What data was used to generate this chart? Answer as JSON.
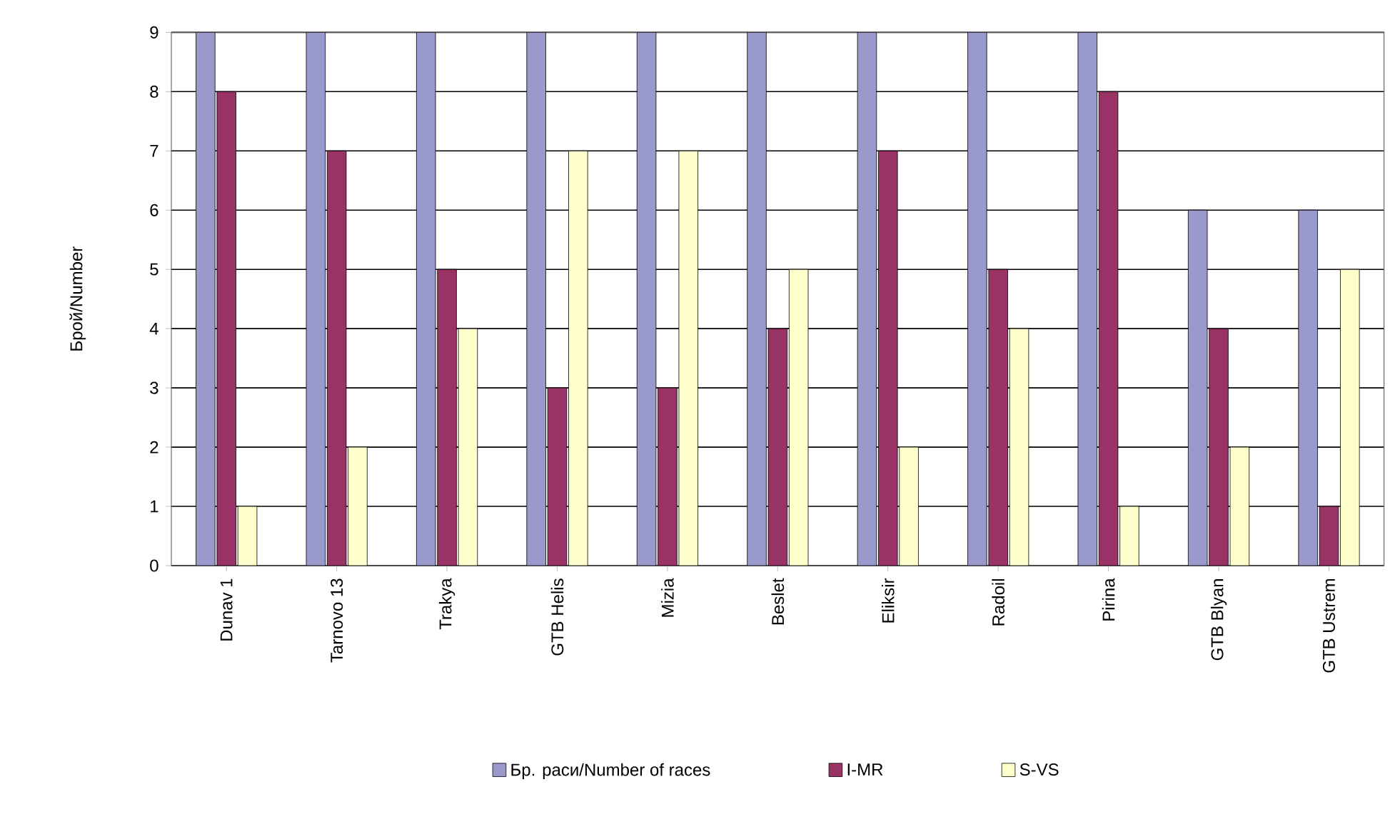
{
  "chart_data": {
    "type": "bar",
    "ylabel": "Брой/Number",
    "categories": [
      "Dunav 1",
      "Tarnovo 13",
      "Trakya",
      "GTB Helis",
      "Mizia",
      "Beslet",
      "Eliksir",
      "Radoil",
      "Pirina",
      "GTB Blyan",
      "GTB Ustrem"
    ],
    "series": [
      {
        "name": "Бр. раси/Number of races",
        "color": "#9999cc",
        "values": [
          9,
          9,
          9,
          9,
          9,
          9,
          9,
          9,
          9,
          6,
          6
        ]
      },
      {
        "name": "I-MR",
        "color": "#993366",
        "values": [
          8,
          7,
          5,
          3,
          3,
          4,
          7,
          5,
          8,
          4,
          1
        ]
      },
      {
        "name": "S-VS",
        "color": "#ffffcc",
        "values": [
          1,
          2,
          4,
          7,
          7,
          5,
          2,
          4,
          1,
          2,
          5
        ]
      }
    ],
    "ylim": [
      0,
      9
    ],
    "yticks": [
      0,
      1,
      2,
      3,
      4,
      5,
      6,
      7,
      8,
      9
    ],
    "grid": "y",
    "legend": "bottom"
  }
}
